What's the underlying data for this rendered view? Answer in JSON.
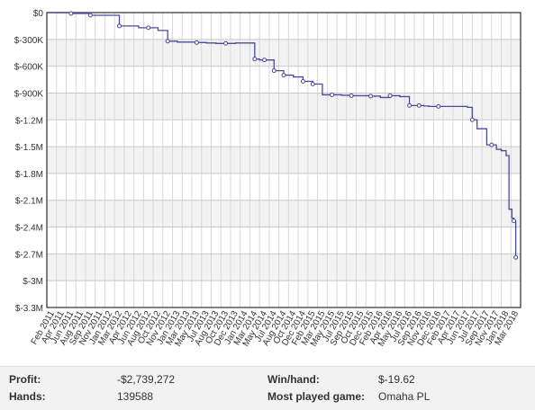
{
  "chart_data": {
    "type": "line",
    "title": "",
    "xlabel": "",
    "ylabel": "",
    "ylim": [
      -3300000,
      0
    ],
    "y_ticks": [
      0,
      -300000,
      -600000,
      -900000,
      -1200000,
      -1500000,
      -1800000,
      -2100000,
      -2400000,
      -2700000,
      -3000000,
      -3300000
    ],
    "y_tick_labels": [
      "$0",
      "$-300K",
      "$-600K",
      "$-900K",
      "$-1.2M",
      "$-1.5M",
      "$-1.8M",
      "$-2.1M",
      "$-2.4M",
      "$-2.7M",
      "$-3M",
      "$-3.3M"
    ],
    "x_tick_labels": [
      "Feb 2011",
      "Apr 2011",
      "Jun 2011",
      "Aug 2011",
      "Sep 2011",
      "Nov 2011",
      "Jan 2012",
      "Mar 2012",
      "Apr 2012",
      "Jun 2012",
      "Aug 2012",
      "Oct 2012",
      "Nov 2012",
      "Jan 2013",
      "Mar 2013",
      "May 2013",
      "Jul 2013",
      "Aug 2013",
      "Oct 2013",
      "Dec 2013",
      "Jan 2014",
      "Mar 2014",
      "May 2014",
      "Jul 2014",
      "Aug 2014",
      "Oct 2014",
      "Dec 2014",
      "Feb 2015",
      "Mar 2015",
      "May 2015",
      "Jul 2015",
      "Sep 2015",
      "Oct 2015",
      "Dec 2015",
      "Feb 2016",
      "Apr 2016",
      "May 2016",
      "Jul 2016",
      "Sep 2016",
      "Nov 2016",
      "Dec 2016",
      "Feb 2017",
      "Apr 2017",
      "Jun 2017",
      "Jul 2017",
      "Sep 2017",
      "Nov 2017",
      "Jan 2018",
      "Mar 2018"
    ],
    "grid": true,
    "line_color": "#4a4a9a",
    "series": [
      {
        "name": "",
        "x": [
          0,
          2,
          4,
          6,
          7,
          9,
          10,
          11,
          12,
          13,
          14,
          15,
          16,
          17,
          18,
          19,
          20,
          21,
          21.5,
          22,
          23,
          24,
          25,
          26,
          27,
          28,
          29,
          30,
          31,
          32,
          33,
          34,
          35,
          36,
          37,
          38,
          38.5,
          39,
          40,
          41,
          42,
          43,
          43.5,
          44,
          45,
          46,
          46.5,
          47,
          47.3,
          47.6,
          47.8,
          48
        ],
        "y": [
          0,
          -10000,
          -30000,
          -30000,
          -150000,
          -170000,
          -170000,
          -200000,
          -320000,
          -330000,
          -330000,
          -335000,
          -340000,
          -345000,
          -345000,
          -340000,
          -340000,
          -520000,
          -530000,
          -530000,
          -650000,
          -700000,
          -720000,
          -770000,
          -800000,
          -920000,
          -920000,
          -925000,
          -930000,
          -930000,
          -935000,
          -950000,
          -930000,
          -940000,
          -1040000,
          -1040000,
          -1045000,
          -1050000,
          -1050000,
          -1050000,
          -1050000,
          -1060000,
          -1200000,
          -1300000,
          -1480000,
          -1530000,
          -1545000,
          -1600000,
          -2200000,
          -2300000,
          -2330000,
          -2739272
        ]
      }
    ],
    "markers_x": [
      2,
      4,
      7,
      10,
      12,
      15,
      18,
      21,
      22,
      23,
      24,
      26,
      27,
      29,
      31,
      33,
      35,
      37,
      38,
      40,
      43.5,
      45.5,
      47.8,
      48
    ]
  },
  "stats": {
    "profit_label": "Profit:",
    "profit_value": "-$2,739,272",
    "winhand_label": "Win/hand:",
    "winhand_value": "$-19.62",
    "hands_label": "Hands:",
    "hands_value": "139588",
    "game_label": "Most played game:",
    "game_value": "Omaha PL"
  }
}
